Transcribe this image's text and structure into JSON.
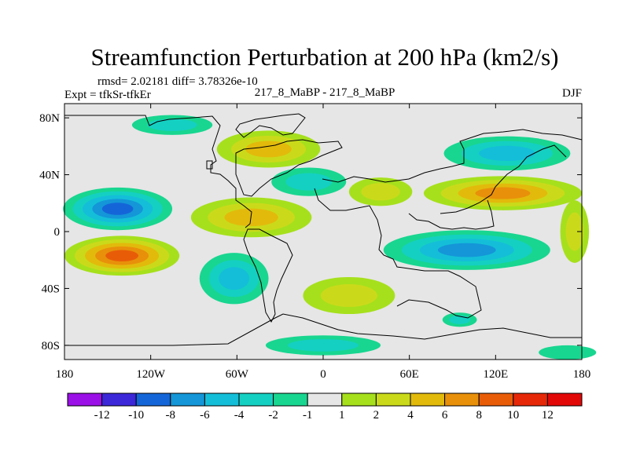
{
  "chart_data": {
    "type": "heatmap",
    "title": "Streamfunction Perturbation at 200 hPa (km2/s)",
    "stats_line": "rmsd= 2.02181 diff= 3.78326e-10",
    "left_label": "Expt = tfkSr-tfkEr",
    "center_label": "217_8_MaBP - 217_8_MaBP",
    "right_label": "DJF",
    "x_range": [
      -180,
      180
    ],
    "y_range": [
      -90,
      90
    ],
    "x_ticks": [
      {
        "value": -180,
        "label": "180"
      },
      {
        "value": -120,
        "label": "120W"
      },
      {
        "value": -60,
        "label": "60W"
      },
      {
        "value": 0,
        "label": "0"
      },
      {
        "value": 60,
        "label": "60E"
      },
      {
        "value": 120,
        "label": "120E"
      },
      {
        "value": 180,
        "label": "180"
      }
    ],
    "y_ticks": [
      {
        "value": 80,
        "label": "80N"
      },
      {
        "value": 40,
        "label": "40N"
      },
      {
        "value": 0,
        "label": "0"
      },
      {
        "value": -40,
        "label": "40S"
      },
      {
        "value": -80,
        "label": "80S"
      }
    ],
    "colorbar": {
      "levels": [
        -12,
        -10,
        -8,
        -6,
        -4,
        -2,
        -1,
        1,
        2,
        4,
        6,
        8,
        10,
        12
      ],
      "labels": [
        "-12",
        "-10",
        "-8",
        "-6",
        "-4",
        "-2",
        "-1",
        "1",
        "2",
        "4",
        "6",
        "8",
        "10",
        "12"
      ],
      "colors": [
        "#9a10e6",
        "#3c28d8",
        "#1466d8",
        "#1496d8",
        "#14bed8",
        "#14d0c2",
        "#18d690",
        "#e6e6e6",
        "#a6e01c",
        "#cada1a",
        "#e2ba0c",
        "#e8900a",
        "#e85c08",
        "#e62808",
        "#e20808"
      ]
    },
    "features": [
      {
        "name": "north-pacific-negative",
        "lon": -143,
        "lat": 16,
        "rlon": 38,
        "rlat": 15,
        "value": -8.5
      },
      {
        "name": "south-pacific-positive",
        "lon": -140,
        "lat": -17,
        "rlon": 40,
        "rlat": 14,
        "value": 9
      },
      {
        "name": "south-america-negative",
        "lon": -62,
        "lat": -33,
        "rlon": 24,
        "rlat": 18,
        "value": -4.5
      },
      {
        "name": "north-america-positive",
        "lon": -38,
        "lat": 58,
        "rlon": 36,
        "rlat": 13,
        "value": 4.5
      },
      {
        "name": "north-atlantic-negative",
        "lon": -10,
        "lat": 35,
        "rlon": 26,
        "rlat": 10,
        "value": -3
      },
      {
        "name": "tropical-atlantic-positive",
        "lon": -50,
        "lat": 10,
        "rlon": 42,
        "rlat": 14,
        "value": 5.5
      },
      {
        "name": "south-atlantic-positive",
        "lon": 18,
        "lat": -45,
        "rlon": 32,
        "rlat": 13,
        "value": 2.5
      },
      {
        "name": "antarctic-negative",
        "lon": 0,
        "lat": -80,
        "rlon": 40,
        "rlat": 7,
        "value": -2.5
      },
      {
        "name": "arctic-negative",
        "lon": -105,
        "lat": 75,
        "rlon": 28,
        "rlat": 7,
        "value": -2.5
      },
      {
        "name": "asia-north-negative",
        "lon": 128,
        "lat": 55,
        "rlon": 44,
        "rlat": 12,
        "value": -5.5
      },
      {
        "name": "asia-positive",
        "lon": 125,
        "lat": 27,
        "rlon": 55,
        "rlat": 12,
        "value": 6.5
      },
      {
        "name": "indian-ocean-negative",
        "lon": 100,
        "lat": -13,
        "rlon": 58,
        "rlat": 14,
        "value": -6.5
      },
      {
        "name": "africa-positive",
        "lon": 40,
        "lat": 28,
        "rlon": 22,
        "rlat": 10,
        "value": 3
      },
      {
        "name": "east-pacific-positive",
        "lon": 175,
        "lat": 0,
        "rlon": 10,
        "rlat": 22,
        "value": 3
      },
      {
        "name": "southern-ocean-negative",
        "lon": 95,
        "lat": -62,
        "rlon": 12,
        "rlat": 5,
        "value": -2.5
      },
      {
        "name": "south-pacific-east-negative",
        "lon": 170,
        "lat": -85,
        "rlon": 20,
        "rlat": 5,
        "value": -1.5
      }
    ]
  }
}
